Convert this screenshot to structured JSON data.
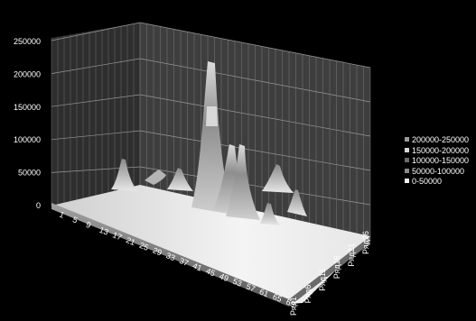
{
  "chart_data": {
    "type": "surface",
    "title": "",
    "xlabel": "",
    "ylabel": "",
    "zlim": [
      0,
      250000
    ],
    "z_ticks": [
      "0",
      "50000",
      "100000",
      "150000",
      "200000",
      "250000"
    ],
    "x_ticks": [
      "1",
      "5",
      "9",
      "13",
      "17",
      "21",
      "25",
      "29",
      "33",
      "37",
      "41",
      "45",
      "49",
      "53",
      "57",
      "61",
      "65",
      "69"
    ],
    "y_ticks": [
      "Ряд1",
      "Ряд6",
      "Ряд11",
      "Ряд16",
      "Ряд21",
      "Ряд26"
    ],
    "legend": [
      "200000-250000",
      "150000-200000",
      "100000-150000",
      "50000-100000",
      "0-50000"
    ],
    "legend_position": "right",
    "grid": true,
    "peaks": [
      {
        "x": 29,
        "series": "Ряд26",
        "value": 215000
      },
      {
        "x": 33,
        "series": "Ряд16",
        "value": 95000
      },
      {
        "x": 37,
        "series": "Ряд21",
        "value": 90000
      },
      {
        "x": 9,
        "series": "Ряд26",
        "value": 50000
      },
      {
        "x": 21,
        "series": "Ряд21",
        "value": 40000
      },
      {
        "x": 45,
        "series": "Ряд21",
        "value": 45000
      },
      {
        "x": 49,
        "series": "Ряд16",
        "value": 30000
      }
    ]
  },
  "colors": {
    "background": "#000000",
    "wall": "#3a3a3a",
    "grid": "#8c8c8c",
    "band_200000_250000": "#9a9a9a",
    "band_150000_200000": "#d8d8d8",
    "band_100000_150000": "#6c6c6c",
    "band_50000_100000": "#8a8a8a",
    "band_0_50000": "#f3f3f3"
  }
}
